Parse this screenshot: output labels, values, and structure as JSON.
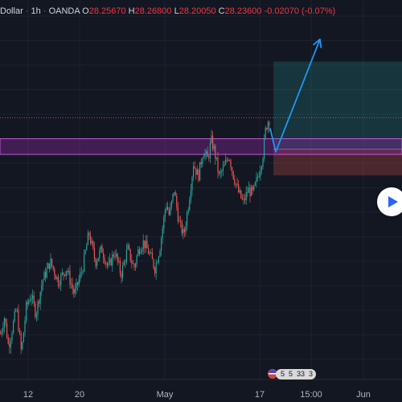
{
  "legend": {
    "symbol": "Dollar",
    "interval": "1h",
    "exchange": "OANDA",
    "open_label": "O",
    "open": "28.25670",
    "high_label": "H",
    "high": "28.26800",
    "low_label": "L",
    "low": "28.20050",
    "close_label": "C",
    "close": "28.23600",
    "change": "-0.02070 (-0.07%)"
  },
  "colors": {
    "background": "#131722",
    "up": "#26a69a",
    "down": "#ef5350",
    "zone": "#9c27b0",
    "arrow": "#2196f3",
    "target_box": "#26a69a",
    "stop_box": "#ef5350"
  },
  "events": {
    "icon": "us-flag-icon",
    "counts": [
      "5",
      "5",
      "33",
      "3"
    ]
  },
  "chart_data": {
    "type": "candlestick",
    "x_tick_labels": [
      "12",
      "20",
      "May",
      "17",
      "15:00",
      "Jun"
    ],
    "y_range": [
      26.5,
      29.4
    ],
    "grid": true,
    "trend_waypoints": [
      [
        0,
        26.85
      ],
      [
        5,
        26.98
      ],
      [
        10,
        26.75
      ],
      [
        15,
        26.9
      ],
      [
        20,
        27.05
      ],
      [
        26,
        26.7
      ],
      [
        32,
        27.05
      ],
      [
        38,
        27.15
      ],
      [
        44,
        27.0
      ],
      [
        52,
        27.25
      ],
      [
        62,
        27.4
      ],
      [
        72,
        27.25
      ],
      [
        82,
        27.35
      ],
      [
        92,
        27.15
      ],
      [
        102,
        27.35
      ],
      [
        110,
        27.62
      ],
      [
        118,
        27.4
      ],
      [
        126,
        27.5
      ],
      [
        134,
        27.35
      ],
      [
        142,
        27.48
      ],
      [
        150,
        27.3
      ],
      [
        158,
        27.5
      ],
      [
        166,
        27.35
      ],
      [
        172,
        27.5
      ],
      [
        178,
        27.55
      ],
      [
        186,
        27.45
      ],
      [
        192,
        27.35
      ],
      [
        198,
        27.5
      ],
      [
        206,
        27.85
      ],
      [
        210,
        27.75
      ],
      [
        216,
        27.95
      ],
      [
        222,
        27.7
      ],
      [
        228,
        27.6
      ],
      [
        234,
        27.85
      ],
      [
        240,
        28.15
      ],
      [
        246,
        28.05
      ],
      [
        252,
        28.25
      ],
      [
        258,
        28.18
      ],
      [
        262,
        28.33
      ],
      [
        266,
        28.25
      ],
      [
        272,
        28.05
      ],
      [
        278,
        28.12
      ],
      [
        284,
        28.22
      ],
      [
        290,
        28.05
      ],
      [
        296,
        27.93
      ],
      [
        302,
        27.85
      ],
      [
        308,
        27.95
      ],
      [
        314,
        27.92
      ],
      [
        320,
        28.05
      ],
      [
        326,
        28.2
      ],
      [
        330,
        28.42
      ],
      [
        334,
        28.5
      ],
      [
        336,
        28.42
      ]
    ],
    "resistance_zone": [
      28.22,
      28.34
    ],
    "current_price_line": 28.5,
    "projection_path": [
      [
        336,
        28.42
      ],
      [
        343,
        28.24
      ],
      [
        398,
        29.1
      ]
    ],
    "position_tool": {
      "entry": 28.26,
      "target": 28.93,
      "stop": 28.06
    }
  }
}
